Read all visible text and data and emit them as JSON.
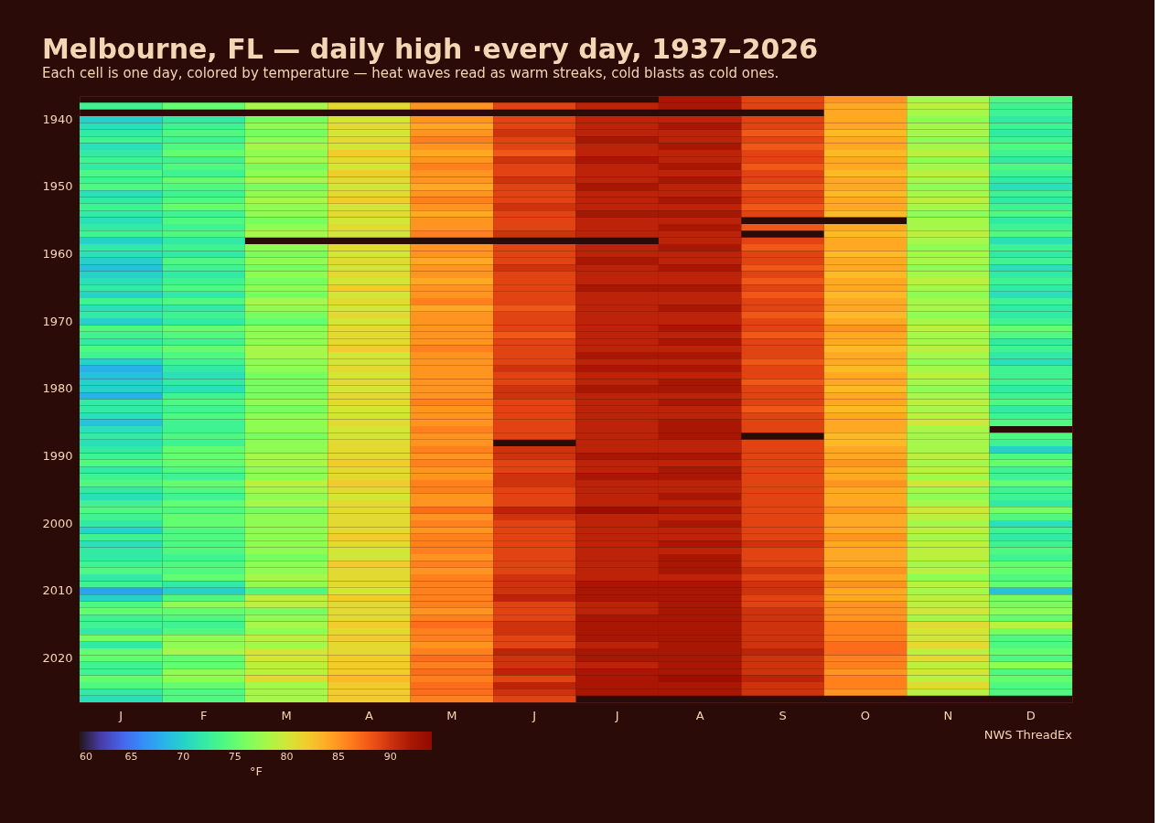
{
  "chart_data": {
    "type": "heatmap",
    "title": "Melbourne, FL — daily high ·every day, 1937–2026",
    "subtitle": "Each cell is one day, colored by temperature — heat waves read as warm streaks, cold blasts as cold ones.",
    "categories": [
      "J",
      "F",
      "M",
      "A",
      "M",
      "J",
      "J",
      "A",
      "S",
      "O",
      "N",
      "D"
    ],
    "y_categories": [
      null,
      null,
      null,
      "1940",
      null,
      null,
      null,
      null,
      null,
      null,
      null,
      null,
      null,
      "1950",
      null,
      null,
      null,
      null,
      null,
      null,
      null,
      null,
      null,
      "1960",
      null,
      null,
      null,
      null,
      null,
      null,
      null,
      null,
      null,
      "1970",
      null,
      null,
      null,
      null,
      null,
      null,
      null,
      null,
      null,
      "1980",
      null,
      null,
      null,
      null,
      null,
      null,
      null,
      null,
      null,
      "1990",
      null,
      null,
      null,
      null,
      null,
      null,
      null,
      null,
      null,
      "2000",
      null,
      null,
      null,
      null,
      null,
      null,
      null,
      null,
      null,
      "2010",
      null,
      null,
      null,
      null,
      null,
      null,
      null,
      null,
      null,
      "2020",
      null,
      null,
      null,
      null,
      null,
      null
    ],
    "cells": [
      [
        null,
        null,
        null,
        null,
        null,
        null,
        null,
        92,
        89,
        85,
        78,
        74
      ],
      [
        73,
        75,
        78,
        81,
        85,
        89,
        91,
        92,
        89,
        84,
        79,
        73
      ],
      [
        null,
        null,
        null,
        null,
        null,
        null,
        null,
        null,
        null,
        84,
        78,
        73
      ],
      [
        70,
        72,
        76,
        80,
        85,
        89,
        91,
        91,
        89,
        84,
        77,
        72
      ],
      [
        71,
        73,
        77,
        81,
        84,
        89,
        91,
        92,
        89,
        84,
        78,
        73
      ],
      [
        72,
        74,
        76,
        80,
        85,
        90,
        91,
        91,
        88,
        83,
        78,
        72
      ],
      [
        73,
        73,
        77,
        81,
        86,
        89,
        92,
        91,
        89,
        84,
        77,
        73
      ],
      [
        71,
        74,
        78,
        80,
        85,
        89,
        91,
        92,
        88,
        84,
        78,
        74
      ],
      [
        72,
        75,
        77,
        82,
        84,
        88,
        91,
        91,
        89,
        83,
        79,
        73
      ],
      [
        73,
        73,
        78,
        81,
        85,
        90,
        92,
        91,
        89,
        84,
        77,
        72
      ],
      [
        72,
        74,
        76,
        80,
        86,
        89,
        91,
        92,
        88,
        84,
        78,
        74
      ],
      [
        74,
        73,
        77,
        82,
        85,
        89,
        91,
        91,
        89,
        83,
        79,
        73
      ],
      [
        73,
        75,
        78,
        81,
        85,
        90,
        91,
        92,
        89,
        84,
        78,
        72
      ],
      [
        74,
        74,
        76,
        80,
        84,
        89,
        92,
        91,
        88,
        84,
        77,
        71
      ],
      [
        71,
        73,
        77,
        81,
        85,
        89,
        91,
        91,
        89,
        83,
        78,
        73
      ],
      [
        72,
        74,
        78,
        82,
        86,
        89,
        91,
        92,
        89,
        84,
        79,
        72
      ],
      [
        73,
        75,
        77,
        80,
        85,
        90,
        91,
        91,
        88,
        84,
        78,
        73
      ],
      [
        72,
        73,
        77,
        81,
        84,
        89,
        92,
        92,
        89,
        83,
        77,
        74
      ],
      [
        71,
        74,
        76,
        80,
        85,
        89,
        91,
        91,
        null,
        null,
        78,
        72
      ],
      [
        72,
        73,
        77,
        81,
        85,
        89,
        91,
        92,
        88,
        84,
        78,
        73
      ],
      [
        73,
        74,
        78,
        80,
        86,
        90,
        91,
        91,
        null,
        83,
        79,
        74
      ],
      [
        70,
        72,
        null,
        null,
        null,
        null,
        null,
        91,
        89,
        84,
        78,
        71
      ],
      [
        72,
        73,
        77,
        81,
        85,
        89,
        91,
        92,
        88,
        84,
        77,
        73
      ],
      [
        71,
        72,
        76,
        80,
        85,
        89,
        91,
        91,
        89,
        83,
        78,
        72
      ],
      [
        70,
        74,
        77,
        81,
        84,
        89,
        92,
        91,
        89,
        84,
        78,
        73
      ],
      [
        69,
        73,
        76,
        80,
        85,
        90,
        91,
        92,
        88,
        84,
        77,
        71
      ],
      [
        70,
        72,
        77,
        81,
        85,
        89,
        91,
        91,
        89,
        83,
        78,
        72
      ],
      [
        71,
        73,
        76,
        80,
        84,
        89,
        91,
        91,
        88,
        84,
        79,
        73
      ],
      [
        72,
        74,
        77,
        82,
        85,
        89,
        92,
        92,
        89,
        84,
        78,
        72
      ],
      [
        70,
        72,
        76,
        80,
        85,
        89,
        91,
        91,
        88,
        83,
        77,
        71
      ],
      [
        73,
        74,
        78,
        81,
        86,
        89,
        91,
        91,
        89,
        84,
        78,
        73
      ],
      [
        71,
        72,
        77,
        80,
        84,
        88,
        91,
        92,
        89,
        84,
        78,
        72
      ],
      [
        72,
        73,
        76,
        81,
        85,
        89,
        91,
        91,
        88,
        83,
        77,
        72
      ],
      [
        70,
        72,
        75,
        80,
        85,
        89,
        91,
        91,
        89,
        84,
        78,
        73
      ],
      [
        74,
        75,
        77,
        81,
        85,
        89,
        91,
        92,
        89,
        85,
        79,
        75
      ],
      [
        73,
        74,
        77,
        81,
        85,
        88,
        91,
        91,
        88,
        84,
        78,
        74
      ],
      [
        72,
        73,
        77,
        81,
        85,
        89,
        91,
        92,
        89,
        84,
        78,
        72
      ],
      [
        74,
        75,
        78,
        82,
        86,
        89,
        91,
        91,
        89,
        83,
        79,
        73
      ],
      [
        73,
        74,
        78,
        80,
        85,
        89,
        92,
        92,
        89,
        84,
        78,
        72
      ],
      [
        70,
        73,
        77,
        80,
        85,
        89,
        91,
        91,
        88,
        84,
        77,
        71
      ],
      [
        68,
        72,
        77,
        81,
        85,
        90,
        92,
        92,
        89,
        83,
        78,
        73
      ],
      [
        69,
        71,
        76,
        80,
        85,
        89,
        91,
        91,
        89,
        84,
        79,
        73
      ],
      [
        70,
        72,
        76,
        81,
        85,
        89,
        91,
        92,
        88,
        84,
        78,
        73
      ],
      [
        70,
        71,
        76,
        80,
        85,
        90,
        92,
        92,
        89,
        83,
        77,
        72
      ],
      [
        68,
        73,
        76,
        81,
        85,
        90,
        91,
        91,
        89,
        84,
        78,
        73
      ],
      [
        72,
        74,
        77,
        81,
        86,
        89,
        91,
        92,
        89,
        84,
        79,
        74
      ],
      [
        72,
        73,
        76,
        80,
        85,
        89,
        91,
        91,
        88,
        83,
        78,
        72
      ],
      [
        71,
        74,
        77,
        80,
        85,
        89,
        91,
        91,
        89,
        84,
        79,
        73
      ],
      [
        69,
        73,
        77,
        81,
        85,
        89,
        91,
        92,
        89,
        84,
        80,
        74
      ],
      [
        71,
        73,
        77,
        80,
        86,
        89,
        91,
        92,
        89,
        84,
        78,
        null
      ],
      [
        72,
        74,
        76,
        80,
        85,
        89,
        91,
        92,
        null,
        83,
        78,
        74
      ],
      [
        71,
        73,
        77,
        81,
        85,
        null,
        91,
        91,
        89,
        83,
        78,
        73
      ],
      [
        72,
        75,
        77,
        81,
        86,
        90,
        91,
        91,
        89,
        84,
        78,
        70
      ],
      [
        73,
        75,
        78,
        81,
        85,
        90,
        92,
        92,
        89,
        84,
        79,
        74
      ],
      [
        74,
        75,
        78,
        82,
        86,
        89,
        91,
        91,
        89,
        85,
        78,
        75
      ],
      [
        72,
        74,
        77,
        81,
        85,
        89,
        91,
        92,
        89,
        84,
        79,
        73
      ],
      [
        73,
        73,
        77,
        81,
        85,
        90,
        92,
        92,
        89,
        84,
        78,
        73
      ],
      [
        74,
        75,
        79,
        82,
        86,
        90,
        91,
        91,
        89,
        85,
        80,
        75
      ],
      [
        72,
        74,
        78,
        81,
        86,
        89,
        91,
        91,
        89,
        84,
        78,
        73
      ],
      [
        71,
        73,
        77,
        80,
        85,
        89,
        91,
        92,
        89,
        84,
        77,
        73
      ],
      [
        73,
        75,
        78,
        81,
        85,
        89,
        91,
        91,
        89,
        84,
        78,
        72
      ],
      [
        74,
        74,
        76,
        81,
        87,
        91,
        93,
        92,
        89,
        85,
        80,
        76
      ],
      [
        73,
        75,
        77,
        81,
        85,
        90,
        91,
        91,
        89,
        84,
        79,
        74
      ],
      [
        72,
        75,
        77,
        81,
        86,
        89,
        91,
        92,
        89,
        84,
        78,
        71
      ],
      [
        70,
        74,
        77,
        81,
        85,
        89,
        91,
        91,
        89,
        84,
        79,
        73
      ],
      [
        73,
        74,
        77,
        82,
        86,
        89,
        91,
        91,
        89,
        85,
        78,
        72
      ],
      [
        71,
        74,
        77,
        81,
        86,
        89,
        91,
        92,
        90,
        84,
        79,
        73
      ],
      [
        72,
        74,
        77,
        80,
        86,
        89,
        91,
        91,
        89,
        84,
        79,
        74
      ],
      [
        72,
        73,
        76,
        80,
        85,
        89,
        91,
        92,
        89,
        84,
        79,
        73
      ],
      [
        73,
        74,
        77,
        82,
        86,
        89,
        91,
        92,
        89,
        84,
        78,
        75
      ],
      [
        74,
        74,
        77,
        81,
        85,
        89,
        91,
        92,
        90,
        85,
        79,
        75
      ],
      [
        72,
        75,
        78,
        81,
        86,
        90,
        91,
        91,
        89,
        84,
        77,
        74
      ],
      [
        73,
        72,
        77,
        81,
        86,
        90,
        92,
        92,
        90,
        85,
        79,
        75
      ],
      [
        67,
        70,
        74,
        80,
        86,
        90,
        92,
        92,
        90,
        84,
        78,
        69
      ],
      [
        70,
        74,
        79,
        82,
        86,
        91,
        92,
        92,
        89,
        84,
        79,
        76
      ],
      [
        74,
        77,
        79,
        81,
        86,
        89,
        91,
        92,
        89,
        85,
        79,
        76
      ],
      [
        75,
        75,
        76,
        81,
        85,
        89,
        91,
        92,
        90,
        85,
        80,
        77
      ],
      [
        73,
        74,
        77,
        81,
        86,
        89,
        92,
        92,
        90,
        85,
        78,
        75
      ],
      [
        73,
        73,
        78,
        82,
        87,
        90,
        92,
        92,
        90,
        86,
        81,
        79
      ],
      [
        72,
        74,
        77,
        81,
        86,
        90,
        92,
        92,
        90,
        86,
        80,
        76
      ],
      [
        76,
        77,
        79,
        82,
        86,
        89,
        92,
        92,
        90,
        86,
        80,
        74
      ],
      [
        72,
        77,
        78,
        81,
        85,
        89,
        91,
        92,
        90,
        87,
        81,
        74
      ],
      [
        75,
        78,
        80,
        81,
        86,
        91,
        92,
        92,
        91,
        87,
        79,
        75
      ],
      [
        75,
        75,
        80,
        82,
        87,
        90,
        92,
        92,
        90,
        86,
        81,
        74
      ],
      [
        73,
        75,
        79,
        82,
        86,
        90,
        91,
        92,
        90,
        86,
        79,
        77
      ],
      [
        73,
        77,
        79,
        82,
        87,
        91,
        92,
        92,
        90,
        85,
        80,
        74
      ],
      [
        75,
        77,
        81,
        83,
        86,
        89,
        92,
        93,
        91,
        86,
        79,
        75
      ],
      [
        74,
        75,
        78,
        82,
        87,
        91,
        92,
        92,
        90,
        86,
        81,
        74
      ],
      [
        72,
        74,
        78,
        82,
        87,
        90,
        92,
        92,
        90,
        85,
        79,
        74
      ],
      [
        71,
        74,
        78,
        82,
        86,
        89,
        null,
        null,
        null,
        null,
        null,
        null
      ]
    ],
    "clim": [
      60,
      94
    ],
    "cticks": [
      60,
      65,
      70,
      75,
      80,
      85,
      90
    ],
    "clabel": "°F",
    "annotations": [
      "NWS ThreadEx"
    ]
  }
}
